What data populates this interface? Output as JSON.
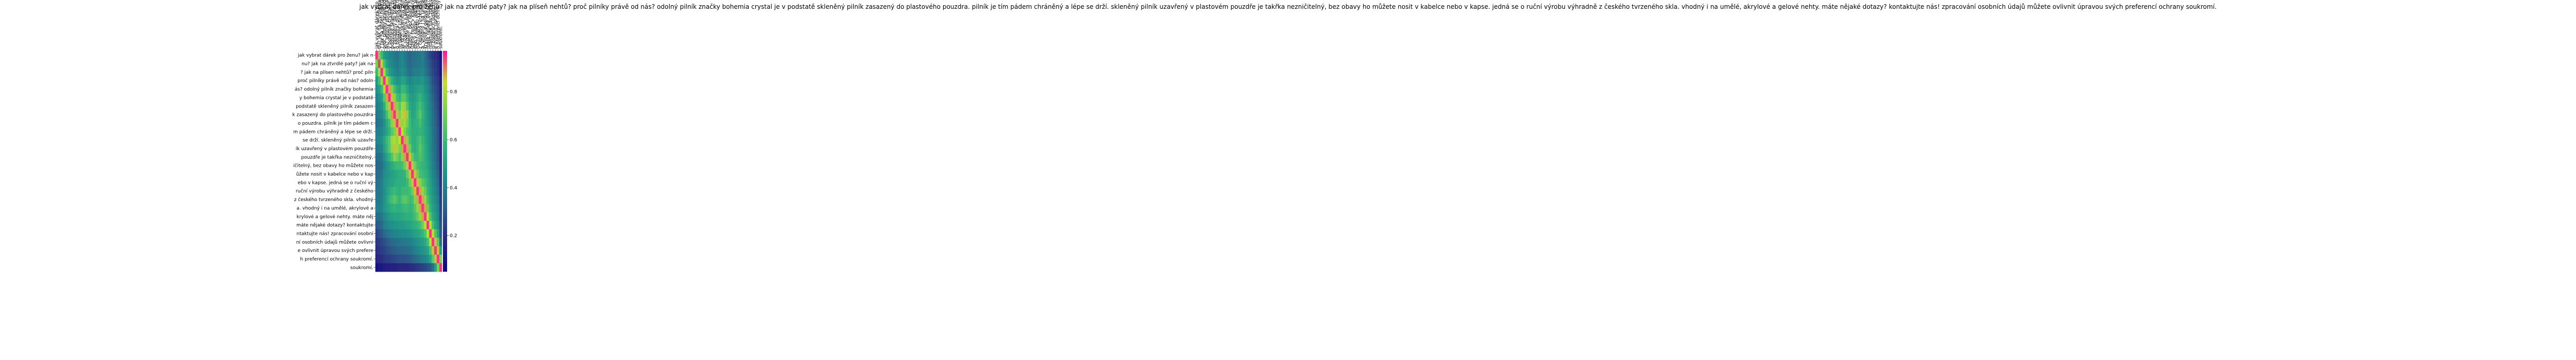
{
  "chart_data": {
    "type": "heatmap",
    "title": "jak vybrat dárek pro ženu? jak na ztvrdlé paty? jak na plíseň nehtů? proč pilníky právě od nás? odolný pilník značky bohemia crystal je v podstatě skleněný pilník zasazený do plastového pouzdra. pilník je tím pádem chráněný a lépe se drží. skleněný pilník uzavřený v plastovém pouzdře je takřka nezničitelný, bez obavy ho můžete nosit v kabelce nebo v kapse. jedná se o ruční výrobu výhradně z českého tvrzeného skla. vhodný i na umělé, akrylové a gelové nehty. máte nějaké dotazy? kontaktujte nás! zpracování osobních údajů můžete ovlivnit úpravou svých preferencí ochrany soukromí.",
    "row_labels": [
      "jak vybrat dárek pro ženu? jak n",
      "nu? jak na ztvrdlé paty? jak na",
      "? jak na plísen nehtů? proč piln",
      "proč pilníky právě od nás? odoln",
      "ás? odolný pilník značky bohemia",
      "y bohemia crystal je v podstatě",
      "podstatě skleněný pilník zasazen",
      "k zasazený do plastového pouzdra",
      "o pouzdra. pilník je tím pádem c",
      "m pádem chráněný a lépe se drží.",
      "se drží. skleněný pilník uzavře",
      "ík uzavřený v plastovém pouzdře",
      "pouzdře je takřka nezničitelný,",
      "ičitelný, bez obavy ho můžete nos",
      "ůžete nosit v kabelce nebo v kap",
      "ebo v kapse. jedná se o ruční vý",
      "ruční výrobu výhradně z českého",
      "z českého tvrzeného skla. vhodný",
      "a. vhodný i na umělé, akrylové a",
      "krylové a gelové nehty. máte něj",
      "máte nějaké dotazy? kontaktujte",
      "ntaktujte nás! zpracování osobní",
      "ní osobních údajů můžete ovlivni",
      "e ovlivnit úpravou svých prefere",
      "h preferencí ochrany soukromí.",
      "soukromí."
    ],
    "col_labels": [
      "jak vybrat dárek pro ženu? jak n",
      "nu? jak na ztvrdlé paty? jak na",
      "? jak na plísen nehtů? proč piln",
      "proč pilníky právě od nás? odoln",
      "ás? odolný pilník značky bohemia",
      "y bohemia crystal je v podstatě",
      "podstatě skleněný pilník zasazen",
      "k zasazený do plastového pouzdra",
      "o pouzdra. pilník je tím pádem c",
      "m pádem chráněný a lépe se drží.",
      "se drží. skleněný pilník uzavře",
      "ík uzavřený v plastovém pouzdře",
      "pouzdře je takřka nezničitelný,",
      "ičitelný, bez obavy ho můžete nos",
      "ůžete nosit v kabelce nebo v kap",
      "ebo v kapse. jedná se o ruční vý",
      "ruční výrobu výhradně z českého",
      "z českého tvrzeného skla. vhodný",
      "a. vhodný i na umělé, akrylové a",
      "krylové a gelové nehty. máte něj",
      "máte nějaké dotazy? kontaktujte",
      "ntaktujte nás! zpracování osobní",
      "ní osobních údajů můžete ovlivni",
      "e ovlivnit úpravou svých prefere",
      "h preferencí ochrany soukromí.",
      "soukromí."
    ],
    "values": [
      [
        0.95,
        0.72,
        0.6,
        0.48,
        0.45,
        0.42,
        0.4,
        0.38,
        0.36,
        0.4,
        0.42,
        0.38,
        0.35,
        0.33,
        0.35,
        0.36,
        0.37,
        0.38,
        0.4,
        0.35,
        0.3,
        0.25,
        0.22,
        0.2,
        0.18,
        0.1
      ],
      [
        0.72,
        0.95,
        0.8,
        0.62,
        0.5,
        0.45,
        0.42,
        0.4,
        0.38,
        0.41,
        0.43,
        0.4,
        0.36,
        0.34,
        0.36,
        0.37,
        0.38,
        0.38,
        0.4,
        0.36,
        0.32,
        0.28,
        0.24,
        0.22,
        0.19,
        0.12
      ],
      [
        0.6,
        0.8,
        0.95,
        0.78,
        0.6,
        0.5,
        0.46,
        0.43,
        0.4,
        0.42,
        0.45,
        0.42,
        0.38,
        0.36,
        0.38,
        0.4,
        0.4,
        0.41,
        0.42,
        0.38,
        0.34,
        0.3,
        0.26,
        0.23,
        0.2,
        0.12
      ],
      [
        0.48,
        0.62,
        0.78,
        0.95,
        0.85,
        0.66,
        0.56,
        0.5,
        0.46,
        0.47,
        0.52,
        0.5,
        0.45,
        0.42,
        0.44,
        0.46,
        0.45,
        0.46,
        0.47,
        0.43,
        0.4,
        0.34,
        0.28,
        0.25,
        0.22,
        0.14
      ],
      [
        0.45,
        0.5,
        0.6,
        0.85,
        0.95,
        0.88,
        0.72,
        0.62,
        0.54,
        0.52,
        0.6,
        0.58,
        0.52,
        0.46,
        0.46,
        0.48,
        0.5,
        0.52,
        0.5,
        0.45,
        0.42,
        0.36,
        0.3,
        0.27,
        0.23,
        0.15
      ],
      [
        0.42,
        0.45,
        0.5,
        0.66,
        0.88,
        0.95,
        0.86,
        0.74,
        0.62,
        0.58,
        0.66,
        0.66,
        0.58,
        0.5,
        0.48,
        0.5,
        0.54,
        0.58,
        0.53,
        0.48,
        0.44,
        0.38,
        0.32,
        0.28,
        0.24,
        0.15
      ],
      [
        0.4,
        0.42,
        0.46,
        0.56,
        0.72,
        0.86,
        0.95,
        0.88,
        0.74,
        0.66,
        0.78,
        0.76,
        0.64,
        0.54,
        0.5,
        0.52,
        0.58,
        0.62,
        0.56,
        0.5,
        0.45,
        0.4,
        0.34,
        0.3,
        0.25,
        0.16
      ],
      [
        0.38,
        0.4,
        0.43,
        0.5,
        0.62,
        0.74,
        0.88,
        0.95,
        0.86,
        0.72,
        0.8,
        0.86,
        0.74,
        0.58,
        0.52,
        0.54,
        0.6,
        0.66,
        0.58,
        0.52,
        0.46,
        0.42,
        0.35,
        0.31,
        0.26,
        0.16
      ],
      [
        0.36,
        0.38,
        0.4,
        0.46,
        0.54,
        0.62,
        0.74,
        0.86,
        0.95,
        0.86,
        0.76,
        0.78,
        0.7,
        0.6,
        0.54,
        0.56,
        0.58,
        0.62,
        0.56,
        0.52,
        0.47,
        0.42,
        0.36,
        0.32,
        0.27,
        0.17
      ],
      [
        0.4,
        0.41,
        0.42,
        0.47,
        0.52,
        0.58,
        0.66,
        0.72,
        0.86,
        0.95,
        0.84,
        0.72,
        0.64,
        0.6,
        0.56,
        0.56,
        0.56,
        0.58,
        0.56,
        0.52,
        0.48,
        0.43,
        0.37,
        0.33,
        0.28,
        0.18
      ],
      [
        0.42,
        0.43,
        0.45,
        0.52,
        0.6,
        0.66,
        0.78,
        0.8,
        0.76,
        0.84,
        0.95,
        0.88,
        0.74,
        0.62,
        0.56,
        0.56,
        0.6,
        0.64,
        0.58,
        0.54,
        0.48,
        0.44,
        0.38,
        0.33,
        0.28,
        0.18
      ],
      [
        0.38,
        0.4,
        0.42,
        0.5,
        0.58,
        0.66,
        0.76,
        0.86,
        0.78,
        0.72,
        0.88,
        0.95,
        0.88,
        0.7,
        0.58,
        0.56,
        0.6,
        0.66,
        0.6,
        0.55,
        0.49,
        0.44,
        0.38,
        0.34,
        0.28,
        0.18
      ],
      [
        0.35,
        0.36,
        0.38,
        0.45,
        0.52,
        0.58,
        0.64,
        0.74,
        0.7,
        0.64,
        0.74,
        0.88,
        0.95,
        0.86,
        0.68,
        0.6,
        0.6,
        0.64,
        0.6,
        0.56,
        0.5,
        0.45,
        0.39,
        0.34,
        0.29,
        0.18
      ],
      [
        0.33,
        0.34,
        0.36,
        0.42,
        0.46,
        0.5,
        0.54,
        0.58,
        0.6,
        0.6,
        0.62,
        0.7,
        0.86,
        0.95,
        0.86,
        0.7,
        0.62,
        0.6,
        0.58,
        0.56,
        0.52,
        0.46,
        0.4,
        0.36,
        0.3,
        0.19
      ],
      [
        0.35,
        0.36,
        0.38,
        0.44,
        0.46,
        0.48,
        0.5,
        0.52,
        0.54,
        0.56,
        0.56,
        0.58,
        0.68,
        0.86,
        0.95,
        0.86,
        0.7,
        0.62,
        0.6,
        0.58,
        0.54,
        0.48,
        0.42,
        0.38,
        0.32,
        0.2
      ],
      [
        0.36,
        0.37,
        0.4,
        0.46,
        0.48,
        0.5,
        0.52,
        0.54,
        0.56,
        0.56,
        0.56,
        0.56,
        0.6,
        0.7,
        0.86,
        0.95,
        0.86,
        0.74,
        0.66,
        0.62,
        0.56,
        0.5,
        0.44,
        0.4,
        0.34,
        0.21
      ],
      [
        0.37,
        0.38,
        0.4,
        0.45,
        0.5,
        0.54,
        0.58,
        0.6,
        0.58,
        0.56,
        0.6,
        0.6,
        0.6,
        0.62,
        0.7,
        0.86,
        0.95,
        0.88,
        0.76,
        0.68,
        0.58,
        0.52,
        0.46,
        0.42,
        0.36,
        0.22
      ],
      [
        0.38,
        0.38,
        0.41,
        0.46,
        0.52,
        0.58,
        0.62,
        0.66,
        0.62,
        0.58,
        0.64,
        0.66,
        0.64,
        0.6,
        0.62,
        0.74,
        0.88,
        0.95,
        0.88,
        0.76,
        0.62,
        0.54,
        0.48,
        0.44,
        0.38,
        0.23
      ],
      [
        0.4,
        0.4,
        0.42,
        0.47,
        0.5,
        0.53,
        0.56,
        0.58,
        0.56,
        0.56,
        0.58,
        0.6,
        0.6,
        0.58,
        0.6,
        0.66,
        0.76,
        0.88,
        0.95,
        0.88,
        0.7,
        0.58,
        0.5,
        0.46,
        0.4,
        0.24
      ],
      [
        0.35,
        0.36,
        0.38,
        0.43,
        0.45,
        0.48,
        0.5,
        0.52,
        0.52,
        0.52,
        0.54,
        0.55,
        0.56,
        0.56,
        0.58,
        0.62,
        0.68,
        0.76,
        0.88,
        0.95,
        0.82,
        0.64,
        0.54,
        0.48,
        0.42,
        0.26
      ],
      [
        0.3,
        0.32,
        0.34,
        0.4,
        0.42,
        0.44,
        0.45,
        0.46,
        0.47,
        0.48,
        0.48,
        0.49,
        0.5,
        0.52,
        0.54,
        0.56,
        0.58,
        0.62,
        0.7,
        0.82,
        0.95,
        0.82,
        0.62,
        0.52,
        0.45,
        0.28
      ],
      [
        0.25,
        0.28,
        0.3,
        0.34,
        0.36,
        0.38,
        0.4,
        0.42,
        0.42,
        0.43,
        0.44,
        0.44,
        0.45,
        0.46,
        0.48,
        0.5,
        0.52,
        0.54,
        0.58,
        0.64,
        0.82,
        0.95,
        0.82,
        0.64,
        0.52,
        0.3
      ],
      [
        0.22,
        0.24,
        0.26,
        0.28,
        0.3,
        0.32,
        0.34,
        0.35,
        0.36,
        0.37,
        0.38,
        0.38,
        0.39,
        0.4,
        0.42,
        0.44,
        0.46,
        0.48,
        0.5,
        0.54,
        0.62,
        0.82,
        0.95,
        0.86,
        0.66,
        0.36
      ],
      [
        0.2,
        0.22,
        0.23,
        0.25,
        0.27,
        0.28,
        0.3,
        0.31,
        0.32,
        0.33,
        0.33,
        0.34,
        0.34,
        0.36,
        0.38,
        0.4,
        0.42,
        0.44,
        0.46,
        0.48,
        0.52,
        0.64,
        0.86,
        0.95,
        0.86,
        0.5
      ],
      [
        0.18,
        0.19,
        0.2,
        0.22,
        0.23,
        0.24,
        0.25,
        0.26,
        0.27,
        0.28,
        0.28,
        0.28,
        0.29,
        0.3,
        0.32,
        0.34,
        0.36,
        0.38,
        0.4,
        0.42,
        0.45,
        0.52,
        0.66,
        0.86,
        0.95,
        0.72
      ],
      [
        0.1,
        0.12,
        0.12,
        0.14,
        0.15,
        0.15,
        0.16,
        0.16,
        0.17,
        0.18,
        0.18,
        0.18,
        0.18,
        0.19,
        0.2,
        0.21,
        0.22,
        0.23,
        0.24,
        0.26,
        0.28,
        0.3,
        0.36,
        0.5,
        0.72,
        0.95
      ]
    ],
    "colorbar": {
      "ticks": [
        0.2,
        0.4,
        0.6,
        0.8
      ],
      "tick_labels": [
        "0.2",
        "0.4",
        "0.6",
        "0.8"
      ],
      "vmin": 0.05,
      "vmax": 0.97
    },
    "colormap": [
      "#0d0887",
      "#2a2680",
      "#2c5f8a",
      "#1f8f8a",
      "#2fb47c",
      "#73d056",
      "#c3e02c",
      "#ff1493"
    ]
  }
}
